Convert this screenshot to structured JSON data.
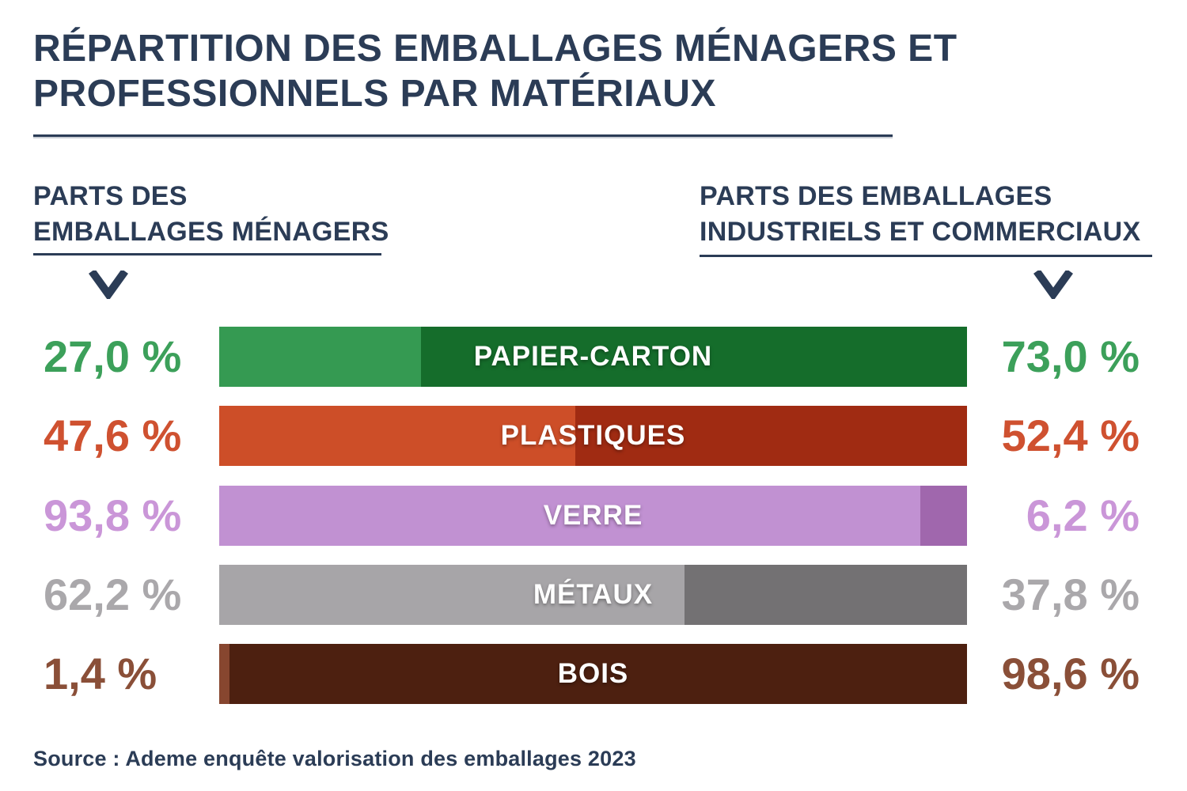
{
  "title": "RÉPARTITION DES EMBALLAGES MÉNAGERS ET PROFESSIONNELS PAR MATÉRIAUX",
  "left_header": {
    "line1": "PARTS DES",
    "line2": "EMBALLAGES MÉNAGERS"
  },
  "right_header": {
    "line1": "PARTS DES EMBALLAGES",
    "line2": "INDUSTRIELS ET COMMERCIAUX"
  },
  "source": "Source : Ademe enquête valorisation des emballages 2023",
  "colors": {
    "navy": "#2b3c56",
    "background": "#ffffff",
    "bar_text": "#ffffff"
  },
  "icons": {
    "left_chevron": "chevron-down-icon",
    "right_chevron": "chevron-down-icon"
  },
  "chart_data": {
    "type": "bar",
    "subtype": "100-percent-stacked-horizontal",
    "title": "Répartition des emballages ménagers et professionnels par matériaux",
    "unit": "%",
    "categories": [
      "PAPIER-CARTON",
      "PLASTIQUES",
      "VERRE",
      "MÉTAUX",
      "BOIS"
    ],
    "series": [
      {
        "name": "Parts des emballages ménagers",
        "values": [
          27.0,
          47.6,
          93.8,
          62.2,
          1.4
        ]
      },
      {
        "name": "Parts des emballages industriels et commerciaux",
        "values": [
          73.0,
          52.4,
          6.2,
          37.8,
          98.6
        ]
      }
    ],
    "legend_position": "top",
    "grid": false,
    "rows": [
      {
        "material": "PAPIER-CARTON",
        "left_value": 27.0,
        "right_value": 73.0,
        "left_label": "27,0 %",
        "right_label": "73,0 %",
        "color_left": "#359a52",
        "color_right": "#156d2b",
        "label_color": "#3ca05a"
      },
      {
        "material": "PLASTIQUES",
        "left_value": 47.6,
        "right_value": 52.4,
        "left_label": "47,6 %",
        "right_label": "52,4 %",
        "color_left": "#cd4e28",
        "color_right": "#a02b12",
        "label_color": "#cf5130"
      },
      {
        "material": "VERRE",
        "left_value": 93.8,
        "right_value": 6.2,
        "left_label": "93,8 %",
        "right_label": "6,2 %",
        "color_left": "#c191d2",
        "color_right": "#a067ad",
        "label_color": "#ca96d8"
      },
      {
        "material": "MÉTAUX",
        "left_value": 62.2,
        "right_value": 37.8,
        "left_label": "62,2 %",
        "right_label": "37,8 %",
        "color_left": "#a7a5a8",
        "color_right": "#737173",
        "label_color": "#aaa8ab"
      },
      {
        "material": "BOIS",
        "left_value": 1.4,
        "right_value": 98.6,
        "left_label": "1,4 %",
        "right_label": "98,6 %",
        "color_left": "#87462f",
        "color_right": "#4d2010",
        "label_color": "#8a4f38"
      }
    ]
  }
}
